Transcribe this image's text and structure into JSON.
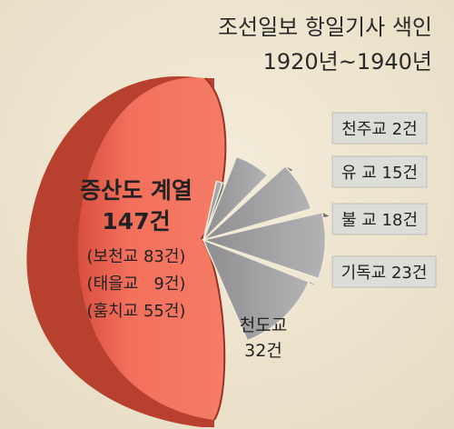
{
  "chart_data": {
    "type": "pie",
    "title": "조선일보 항일기사 색인",
    "subtitle": "1920년~1940년",
    "main_slice": {
      "name": "증산도 계열",
      "value_label": "147건",
      "value": 147,
      "breakdown": [
        {
          "text": "(보천교 83건)",
          "value": 83
        },
        {
          "text": "(태을교   9건)",
          "value": 9
        },
        {
          "text": "(훔치교 55건)",
          "value": 55
        }
      ],
      "color": "#f0705c"
    },
    "slices": [
      {
        "name": "천주교 2건",
        "value": 2
      },
      {
        "name": "유 교 15건",
        "value": 15
      },
      {
        "name": "불 교 18건",
        "value": 18
      },
      {
        "name": "기독교 23건",
        "value": 23
      },
      {
        "name_lines": [
          "천도교",
          "32건"
        ],
        "value": 32
      }
    ],
    "colors": {
      "main": "#f0705c",
      "main_dark": "#c4473a",
      "gray": "#a9a9ab",
      "gray_dark": "#6f6f72",
      "label_box": "#d8d8d6"
    }
  }
}
